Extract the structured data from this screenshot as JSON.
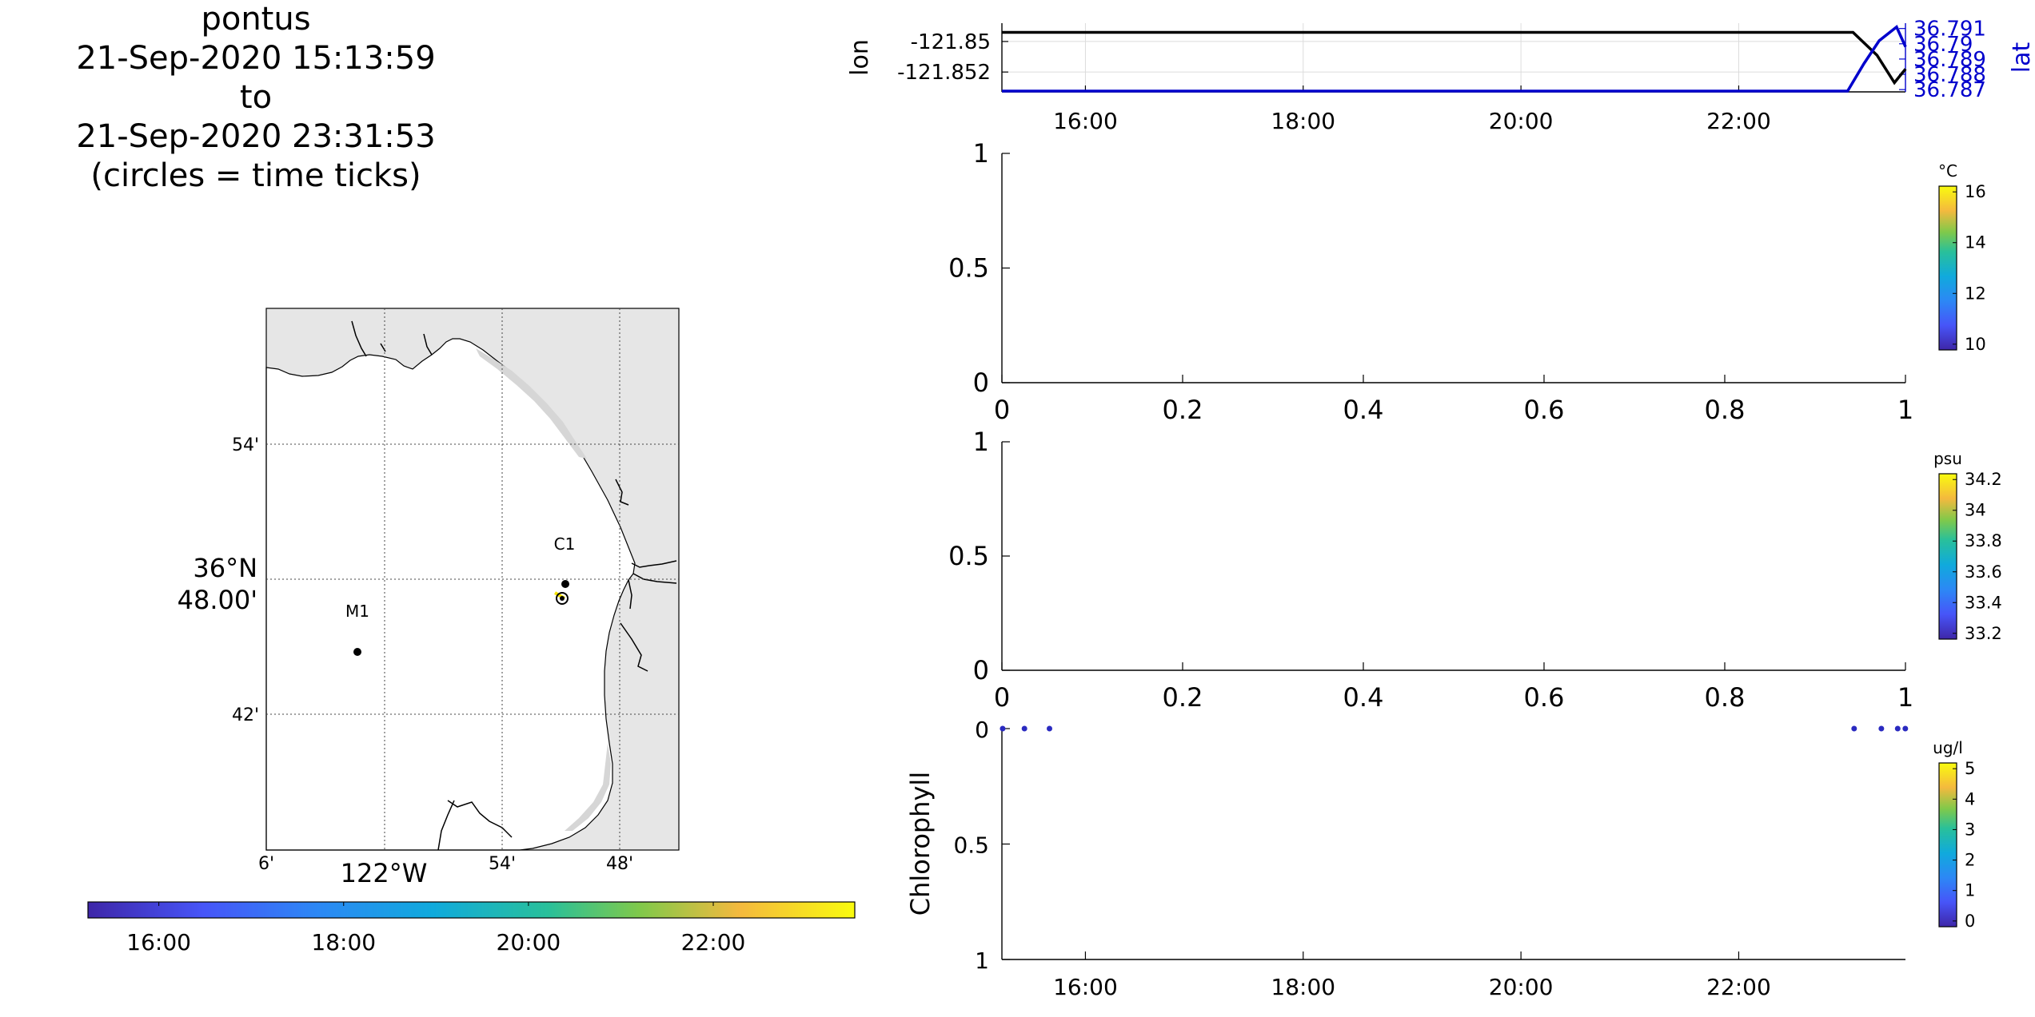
{
  "title": {
    "lines": [
      "pontus",
      "21-Sep-2020 15:13:59",
      "to",
      "21-Sep-2020 23:31:53",
      "(circles = time ticks)"
    ]
  },
  "chart_data": [
    {
      "type": "line",
      "name_hint": "position",
      "ylabel": "lon",
      "y2label": "lat",
      "xlim": [
        "15:13:59",
        "23:31:53"
      ],
      "xticks": [
        "16:00",
        "18:00",
        "20:00",
        "22:00"
      ],
      "yticks": [
        "-121.85",
        "-121.852"
      ],
      "y2ticks": [
        "36.791",
        "36.79",
        "36.789",
        "36.788",
        "36.787"
      ],
      "series": [
        {
          "axis": "left",
          "color": "#000000",
          "x": [
            15.233,
            23.05,
            23.27,
            23.43,
            23.532
          ],
          "y": [
            -121.8494,
            -121.8494,
            -121.8509,
            -121.8527,
            -121.8518
          ]
        },
        {
          "axis": "right",
          "color": "#0000cc",
          "x": [
            15.233,
            23.0,
            23.15,
            23.29,
            23.45,
            23.532
          ],
          "y": [
            36.7869,
            36.7869,
            36.7887,
            36.7902,
            36.7911,
            36.7898
          ]
        }
      ]
    },
    {
      "type": "scatter",
      "xlim": [
        0,
        1
      ],
      "ylim": [
        0,
        1
      ],
      "xticks": [
        "0",
        "0.2",
        "0.4",
        "0.6",
        "0.8",
        "1"
      ],
      "yticks": [
        "0",
        "0.5",
        "1"
      ],
      "colorbar": {
        "unit": "°C",
        "ticks": [
          "10",
          "12",
          "14",
          "16"
        ]
      },
      "points": []
    },
    {
      "type": "scatter",
      "xlim": [
        0,
        1
      ],
      "ylim": [
        0,
        1
      ],
      "xticks": [
        "0",
        "0.2",
        "0.4",
        "0.6",
        "0.8",
        "1"
      ],
      "yticks": [
        "0",
        "0.5",
        "1"
      ],
      "colorbar": {
        "unit": "psu",
        "ticks": [
          "33.2",
          "33.4",
          "33.6",
          "33.8",
          "34",
          "34.2"
        ]
      },
      "points": []
    },
    {
      "type": "scatter",
      "ylabel": "Chlorophyll",
      "xlim": [
        "15:13:59",
        "23:31:53"
      ],
      "xticks": [
        "16:00",
        "18:00",
        "20:00",
        "22:00"
      ],
      "ylim": [
        0,
        1
      ],
      "yreversed": true,
      "yticks": [
        "0",
        "0.5",
        "1"
      ],
      "colorbar": {
        "unit": "ug/l",
        "ticks": [
          "0",
          "1",
          "2",
          "3",
          "4",
          "5"
        ]
      },
      "point_color": "#2a2ac0",
      "points": {
        "x": [
          15.24,
          15.44,
          15.67,
          23.06,
          23.31,
          23.46,
          23.53
        ],
        "y": [
          0,
          0,
          0,
          0,
          0,
          0,
          0
        ]
      }
    },
    {
      "type": "map",
      "xticks": [
        "6'",
        "54'",
        "48'"
      ],
      "xlabel_main": "122°W",
      "yticks": [
        "54'",
        "42'"
      ],
      "ylabel_main": [
        "36°N",
        "48.00'"
      ],
      "stations": [
        {
          "label": "M1"
        },
        {
          "label": "C1"
        }
      ],
      "colorbar": {
        "ticks": [
          "16:00",
          "18:00",
          "20:00",
          "22:00"
        ]
      }
    }
  ]
}
